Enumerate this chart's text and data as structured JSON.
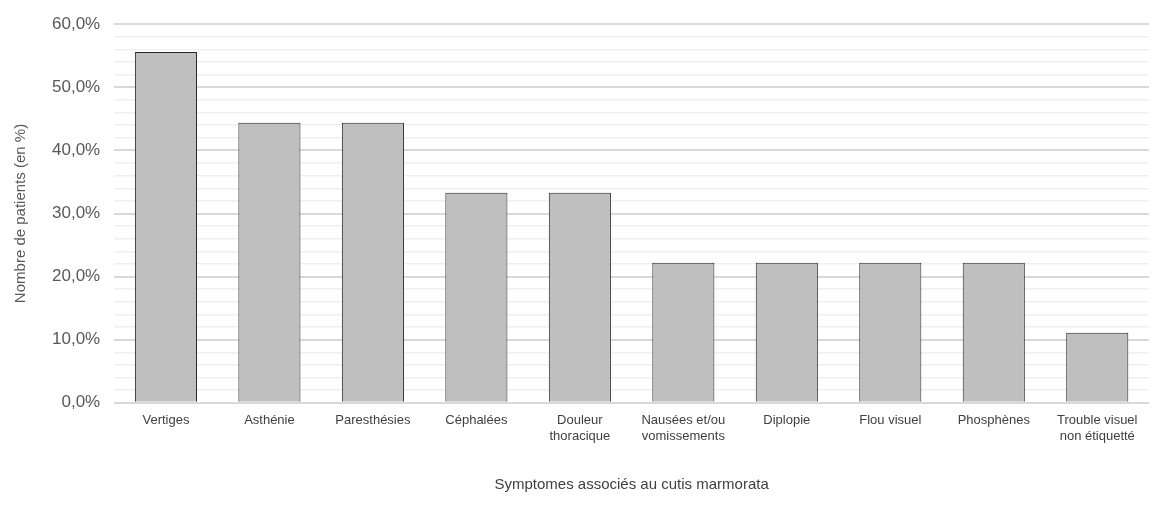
{
  "chart_data": {
    "type": "bar",
    "xlabel": "Symptomes associés au cutis marmorata",
    "ylabel": "Nombre de patients (en %)",
    "categories": [
      "Vertiges",
      "Asthénie",
      "Paresthésies",
      "Céphalées",
      "Douleur thoracique",
      "Nausées et/ou vomissements",
      "Diplopie",
      "Flou visuel",
      "Phosphènes",
      "Trouble visuel non étiquetté"
    ],
    "values": [
      55.6,
      44.4,
      44.4,
      33.3,
      33.3,
      22.2,
      22.2,
      22.2,
      22.2,
      11.1
    ],
    "color": "#bfbfbf",
    "ylim": [
      0,
      60
    ],
    "yticks": [
      {
        "value": 0,
        "label": "0,0%"
      },
      {
        "value": 2,
        "label": null
      },
      {
        "value": 4,
        "label": null
      },
      {
        "value": 6,
        "label": null
      },
      {
        "value": 8,
        "label": null
      },
      {
        "value": 10,
        "label": "10,0%"
      },
      {
        "value": 12,
        "label": null
      },
      {
        "value": 14,
        "label": null
      },
      {
        "value": 16,
        "label": null
      },
      {
        "value": 18,
        "label": null
      },
      {
        "value": 20,
        "label": "20,0%"
      },
      {
        "value": 22,
        "label": null
      },
      {
        "value": 24,
        "label": null
      },
      {
        "value": 26,
        "label": null
      },
      {
        "value": 28,
        "label": null
      },
      {
        "value": 30,
        "label": "30,0%"
      },
      {
        "value": 32,
        "label": null
      },
      {
        "value": 34,
        "label": null
      },
      {
        "value": 36,
        "label": null
      },
      {
        "value": 38,
        "label": null
      },
      {
        "value": 40,
        "label": "40,0%"
      },
      {
        "value": 42,
        "label": null
      },
      {
        "value": 44,
        "label": null
      },
      {
        "value": 46,
        "label": null
      },
      {
        "value": 48,
        "label": null
      },
      {
        "value": 50,
        "label": "50,0%"
      },
      {
        "value": 52,
        "label": null
      },
      {
        "value": 54,
        "label": null
      },
      {
        "value": 56,
        "label": null
      },
      {
        "value": 58,
        "label": null
      },
      {
        "value": 60,
        "label": "60,0%"
      }
    ],
    "grid": "y",
    "legend": false
  }
}
